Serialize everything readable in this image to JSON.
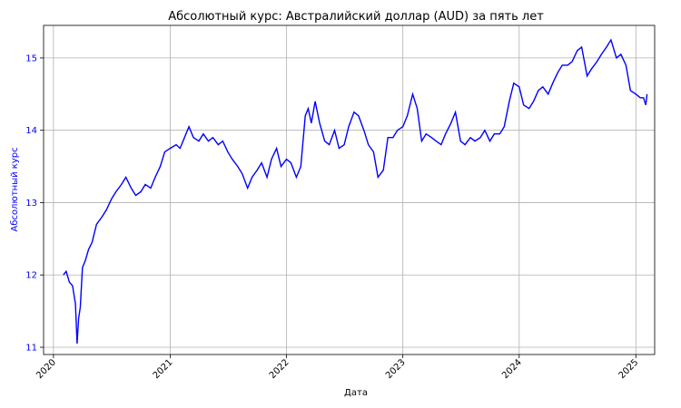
{
  "chart_data": {
    "type": "line",
    "title": "Абсолютный курс: Австралийский доллар (AUD) за пять лет",
    "xlabel": "Дата",
    "ylabel": "Абсолютный курс",
    "x_ticks": [
      "2020",
      "2021",
      "2022",
      "2023",
      "2024",
      "2025"
    ],
    "y_ticks": [
      "11",
      "12",
      "13",
      "14",
      "15"
    ],
    "xlim": [
      "2019-12-01",
      "2025-03-01"
    ],
    "ylim": [
      10.9,
      15.45
    ],
    "grid": true,
    "line_color": "#0000ff",
    "y_axis_color": "#0000ff",
    "series": [
      {
        "x": [
          "2020-02-01",
          "2020-02-10",
          "2020-02-20",
          "2020-03-01",
          "2020-03-10",
          "2020-03-15",
          "2020-03-20",
          "2020-03-25",
          "2020-04-01",
          "2020-04-10",
          "2020-04-20",
          "2020-05-01",
          "2020-05-15",
          "2020-06-01",
          "2020-06-15",
          "2020-07-01",
          "2020-07-15",
          "2020-08-01",
          "2020-08-15",
          "2020-09-01",
          "2020-09-15",
          "2020-10-01",
          "2020-10-15",
          "2020-11-01",
          "2020-11-15",
          "2020-12-01",
          "2020-12-15",
          "2021-01-01",
          "2021-01-20",
          "2021-02-01",
          "2021-02-15",
          "2021-03-01",
          "2021-03-15",
          "2021-04-01",
          "2021-04-15",
          "2021-05-01",
          "2021-05-15",
          "2021-06-01",
          "2021-06-15",
          "2021-07-01",
          "2021-07-15",
          "2021-08-01",
          "2021-08-15",
          "2021-09-01",
          "2021-09-15",
          "2021-10-01",
          "2021-10-15",
          "2021-11-01",
          "2021-11-15",
          "2021-12-01",
          "2021-12-15",
          "2022-01-01",
          "2022-01-15",
          "2022-02-01",
          "2022-02-15",
          "2022-03-01",
          "2022-03-10",
          "2022-03-20",
          "2022-04-01",
          "2022-04-15",
          "2022-05-01",
          "2022-05-15",
          "2022-06-01",
          "2022-06-15",
          "2022-07-01",
          "2022-07-15",
          "2022-08-01",
          "2022-08-15",
          "2022-09-01",
          "2022-09-15",
          "2022-10-01",
          "2022-10-15",
          "2022-11-01",
          "2022-11-15",
          "2022-12-01",
          "2022-12-15",
          "2023-01-01",
          "2023-01-15",
          "2023-02-01",
          "2023-02-15",
          "2023-03-01",
          "2023-03-15",
          "2023-04-01",
          "2023-04-15",
          "2023-05-01",
          "2023-05-15",
          "2023-06-01",
          "2023-06-15",
          "2023-07-01",
          "2023-07-15",
          "2023-08-01",
          "2023-08-15",
          "2023-09-01",
          "2023-09-15",
          "2023-10-01",
          "2023-10-15",
          "2023-11-01",
          "2023-11-15",
          "2023-12-01",
          "2023-12-15",
          "2024-01-01",
          "2024-01-15",
          "2024-02-01",
          "2024-02-15",
          "2024-03-01",
          "2024-03-15",
          "2024-04-01",
          "2024-04-15",
          "2024-05-01",
          "2024-05-15",
          "2024-06-01",
          "2024-06-15",
          "2024-07-01",
          "2024-07-15",
          "2024-08-01",
          "2024-08-15",
          "2024-09-01",
          "2024-09-15",
          "2024-10-01",
          "2024-10-15",
          "2024-11-01",
          "2024-11-15",
          "2024-12-01",
          "2024-12-15",
          "2025-01-01",
          "2025-01-15",
          "2025-01-25",
          "2025-02-01",
          "2025-02-05"
        ],
        "y": [
          12.0,
          12.05,
          11.9,
          11.85,
          11.6,
          11.05,
          11.4,
          11.55,
          12.1,
          12.2,
          12.35,
          12.45,
          12.7,
          12.8,
          12.9,
          13.05,
          13.15,
          13.25,
          13.35,
          13.2,
          13.1,
          13.15,
          13.25,
          13.2,
          13.35,
          13.5,
          13.7,
          13.75,
          13.8,
          13.75,
          13.9,
          14.05,
          13.9,
          13.85,
          13.95,
          13.85,
          13.9,
          13.8,
          13.85,
          13.7,
          13.6,
          13.5,
          13.4,
          13.2,
          13.35,
          13.45,
          13.55,
          13.35,
          13.6,
          13.75,
          13.5,
          13.6,
          13.55,
          13.35,
          13.5,
          14.2,
          14.3,
          14.1,
          14.4,
          14.1,
          13.85,
          13.8,
          14.0,
          13.75,
          13.8,
          14.05,
          14.25,
          14.2,
          14.0,
          13.8,
          13.7,
          13.35,
          13.45,
          13.9,
          13.9,
          14.0,
          14.05,
          14.2,
          14.5,
          14.3,
          13.85,
          13.95,
          13.9,
          13.85,
          13.8,
          13.95,
          14.1,
          14.25,
          13.85,
          13.8,
          13.9,
          13.85,
          13.9,
          14.0,
          13.85,
          13.95,
          13.95,
          14.05,
          14.4,
          14.65,
          14.6,
          14.35,
          14.3,
          14.4,
          14.55,
          14.6,
          14.5,
          14.65,
          14.8,
          14.9,
          14.9,
          14.95,
          15.1,
          15.15,
          14.75,
          14.85,
          14.95,
          15.05,
          15.15,
          15.25,
          15.0,
          15.05,
          14.9,
          14.55,
          14.5,
          14.45,
          14.45,
          14.35,
          14.5
        ]
      }
    ]
  }
}
